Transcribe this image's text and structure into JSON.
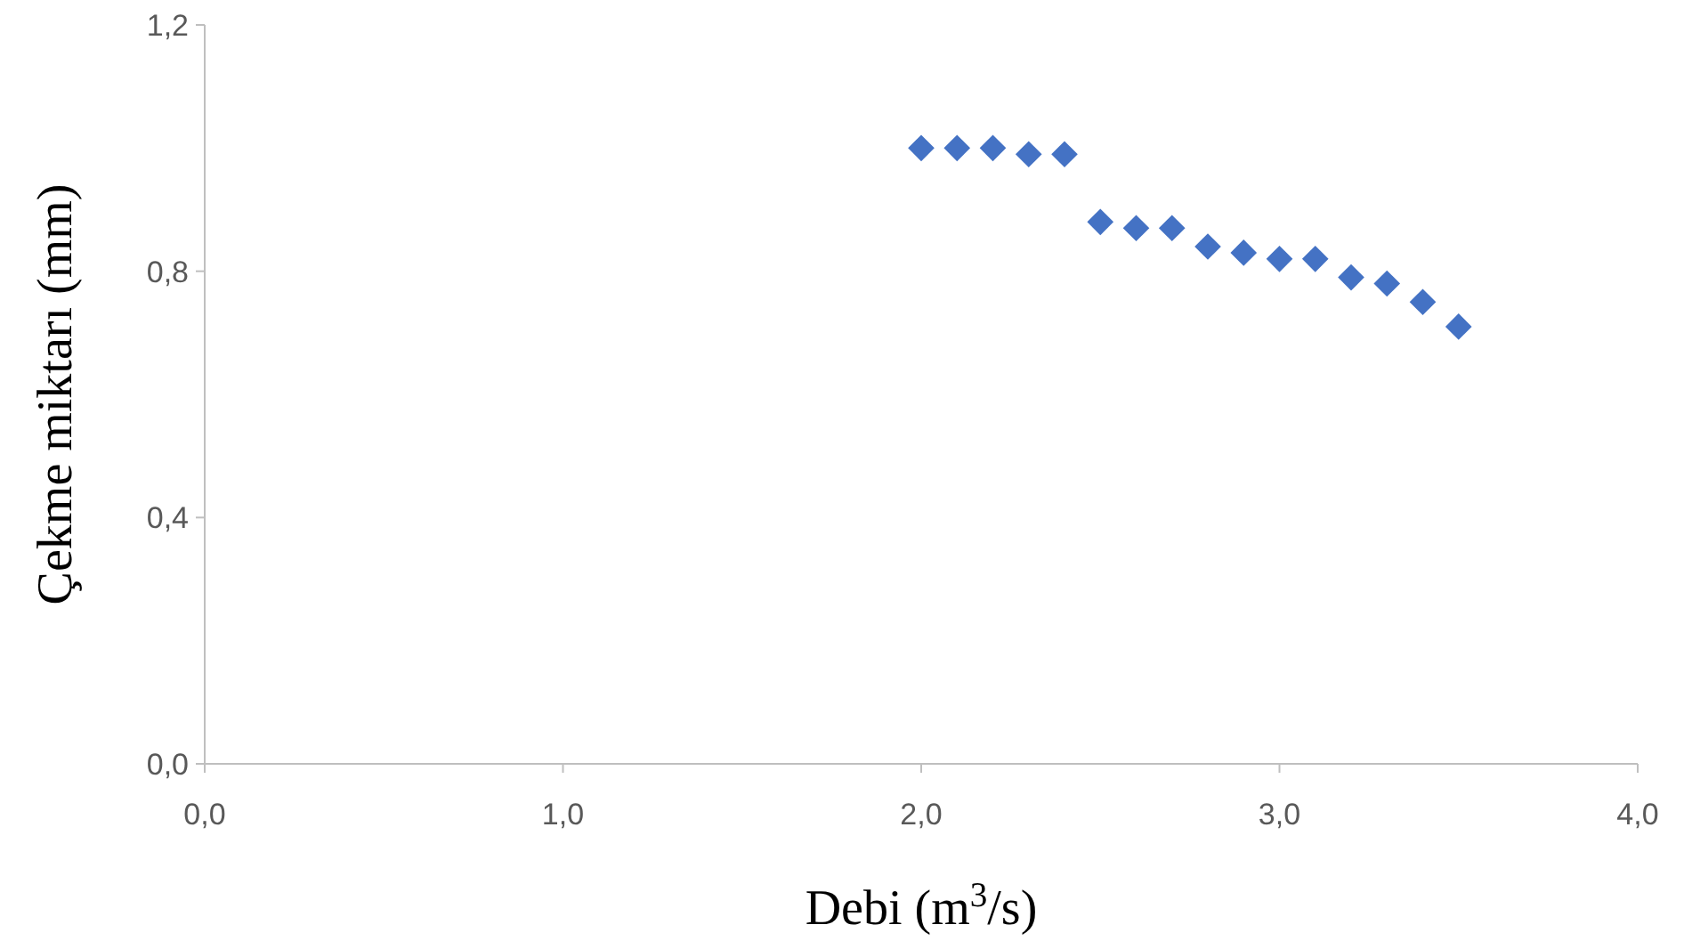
{
  "chart_data": {
    "type": "scatter",
    "xlabel": "Debi (m$^{3}$/s)",
    "ylabel": "Çekme miktarı (mm)",
    "x": [
      2.0,
      2.1,
      2.2,
      2.3,
      2.4,
      2.5,
      2.6,
      2.7,
      2.8,
      2.9,
      3.0,
      3.1,
      3.2,
      3.3,
      3.4,
      3.5
    ],
    "series": [
      {
        "color": "#4472c4",
        "values": [
          1.0,
          1.0,
          1.0,
          0.99,
          0.99,
          0.88,
          0.87,
          0.87,
          0.84,
          0.83,
          0.82,
          0.82,
          0.79,
          0.78,
          0.75,
          0.71
        ]
      }
    ],
    "xlim": [
      0,
      4
    ],
    "ylim": [
      0,
      1.2
    ],
    "xticks": [
      {
        "value": 0,
        "label": "0,0"
      },
      {
        "value": 1,
        "label": "1,0"
      },
      {
        "value": 2,
        "label": "2,0"
      },
      {
        "value": 3,
        "label": "3,0"
      },
      {
        "value": 4,
        "label": "4,0"
      }
    ],
    "yticks": [
      {
        "value": 0,
        "label": "0,0"
      },
      {
        "value": 0.4,
        "label": "0,4"
      },
      {
        "value": 0.8,
        "label": "0,8"
      },
      {
        "value": 1.2,
        "label": "1,2"
      }
    ],
    "marker": "diamond",
    "grid": false
  }
}
